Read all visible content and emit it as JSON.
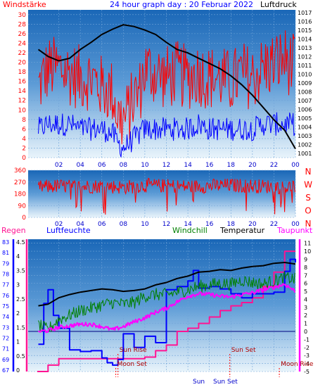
{
  "chart_data": [
    {
      "type": "line",
      "title": "24 hour graph day : 20 Februar 2022",
      "left_label": "Windstärke",
      "right_label": "Luftdruck",
      "x_ticks": [
        "02",
        "04",
        "06",
        "08",
        "10",
        "12",
        "14",
        "16",
        "18",
        "20",
        "22",
        "00"
      ],
      "y_left_ticks": [
        "0",
        "2",
        "4",
        "6",
        "8",
        "10",
        "12",
        "14",
        "16",
        "18",
        "20",
        "22",
        "24",
        "26",
        "28",
        "30"
      ],
      "y_left_range": [
        0,
        31
      ],
      "y_right_ticks": [
        "1001",
        "1002",
        "1003",
        "1004",
        "1005",
        "1006",
        "1007",
        "1008",
        "1009",
        "1010",
        "1011",
        "1012",
        "1013",
        "1014",
        "1015",
        "1016",
        "1017"
      ],
      "y_right_range": [
        1000.5,
        1017.3
      ],
      "colors": {
        "gust": "#ff0000",
        "wind": "#0000ff",
        "pressure": "#000000"
      },
      "series": [
        {
          "name": "",
          "key": "pressure",
          "axis": "right",
          "x": [
            0.1,
            1,
            2,
            3,
            4,
            5,
            6,
            7,
            8,
            9,
            10,
            11,
            12,
            13,
            14,
            15,
            16,
            17,
            18,
            19,
            20,
            21,
            22,
            23,
            24
          ],
          "values": [
            1012.8,
            1012.0,
            1011.5,
            1011.8,
            1012.8,
            1013.6,
            1014.5,
            1015.1,
            1015.6,
            1015.4,
            1015.0,
            1014.5,
            1013.6,
            1012.8,
            1012.4,
            1011.8,
            1011.2,
            1010.6,
            1009.8,
            1008.8,
            1007.6,
            1006.2,
            1004.8,
            1003.6,
            1001.5
          ]
        },
        {
          "name": "",
          "key": "gust",
          "axis": "left",
          "x": [
            0.1,
            1,
            2,
            3,
            4,
            5,
            6,
            7,
            7.5,
            8,
            8.5,
            9,
            9.5,
            10,
            11,
            12,
            13,
            14,
            15,
            16,
            17,
            18,
            19,
            20,
            21,
            22,
            23,
            24
          ],
          "values": [
            14,
            18,
            18,
            17,
            16,
            16,
            14,
            13,
            8,
            7,
            9,
            12,
            13,
            18,
            17,
            16,
            17,
            16,
            17,
            16,
            16,
            15,
            17,
            16,
            18,
            19,
            20,
            18
          ]
        },
        {
          "name": "",
          "key": "wind",
          "axis": "left",
          "x": [
            0.1,
            1,
            2,
            3,
            4,
            5,
            6,
            7,
            7.5,
            8,
            8.5,
            9,
            9.5,
            10,
            11,
            12,
            13,
            14,
            15,
            16,
            17,
            18,
            19,
            20,
            21,
            22,
            23,
            24
          ],
          "values": [
            6,
            7,
            7,
            7,
            6,
            6,
            6,
            5,
            3,
            2,
            3,
            4,
            5,
            6,
            6,
            6,
            6,
            6,
            7,
            6,
            6,
            6,
            6,
            6,
            7,
            7,
            7,
            7
          ]
        }
      ]
    },
    {
      "type": "line",
      "left_ticks": [
        "0",
        "90",
        "180",
        "270",
        "360"
      ],
      "y_range": [
        0,
        360
      ],
      "right_letters": [
        "N",
        "W",
        "S",
        "O",
        "N"
      ],
      "x_ticks": [
        "02",
        "04",
        "06",
        "08",
        "10",
        "12",
        "14",
        "16",
        "18",
        "20",
        "22",
        "00"
      ],
      "colors": {
        "direction": "#ff0000"
      },
      "series": [
        {
          "name": "",
          "key": "direction",
          "x": [
            0.1,
            2,
            4,
            6,
            8,
            10,
            12,
            14,
            16,
            18,
            20,
            22,
            24
          ],
          "values": [
            230,
            240,
            235,
            240,
            230,
            245,
            240,
            235,
            240,
            245,
            240,
            235,
            230
          ]
        }
      ]
    },
    {
      "type": "line",
      "header_labels": {
        "regen": "Regen",
        "luftfeuchte": "Luftfeuchte",
        "windchill": "Windchill",
        "temperatur": "Temperatur",
        "taupunkt": "Taupunkt"
      },
      "humidity_ticks": [
        "67",
        "69",
        "71",
        "72",
        "73",
        "74",
        "75",
        "76",
        "77",
        "78",
        "79",
        "81",
        "83"
      ],
      "rain_ticks": [
        "0",
        "0.5",
        "1",
        "1.5",
        "2",
        "2.5",
        "3",
        "3.5",
        "4",
        "4.5"
      ],
      "temp_ticks": [
        "-5",
        "-4",
        "-3",
        "-2",
        "-1",
        "0",
        "1",
        "2",
        "3",
        "4",
        "5",
        "6",
        "7",
        "8",
        "9",
        "10",
        "11"
      ],
      "x_ticks": [
        "02",
        "04",
        "06",
        "08",
        "10",
        "12",
        "14",
        "16",
        "18",
        "20",
        "22",
        "00"
      ],
      "temp_range": [
        -5,
        11.5
      ],
      "colors": {
        "rain": "#ff1493",
        "humidity": "#0000ff",
        "windchill": "#008000",
        "temperature": "#000000",
        "dewpoint": "#ff00ff",
        "zeroline": "#000080",
        "event": "#ff0000"
      },
      "events": [
        {
          "label": "Sun Rise",
          "hour": 7.5,
          "row": 1
        },
        {
          "label": "Moon Set",
          "hour": 7.3,
          "row": 2
        },
        {
          "label": "Sun Set",
          "hour": 17.9,
          "row": 1
        },
        {
          "label": "Moon Rise",
          "hour": 22.5,
          "row": 2
        }
      ],
      "bottom_labels": {
        "sun": "Sun",
        "sun_set": "Sun Set"
      },
      "series": [
        {
          "name": "",
          "key": "temperature",
          "x": [
            0.1,
            1,
            2,
            3,
            4,
            5,
            6,
            7,
            8,
            9,
            10,
            11,
            12,
            13,
            14,
            15,
            16,
            17,
            18,
            19,
            20,
            21,
            22,
            23,
            24
          ],
          "values": [
            3.2,
            3.4,
            4.2,
            4.6,
            4.9,
            5.1,
            5.3,
            5.2,
            5.0,
            5.1,
            5.3,
            5.8,
            6.1,
            6.6,
            6.9,
            7.4,
            7.5,
            7.7,
            7.6,
            7.9,
            8.1,
            8.2,
            8.5,
            8.6,
            8.4
          ]
        },
        {
          "name": "",
          "key": "windchill",
          "x": [
            0.1,
            1,
            2,
            3,
            4,
            5,
            6,
            7,
            8,
            9,
            10,
            11,
            12,
            13,
            14,
            15,
            16,
            17,
            18,
            19,
            20,
            21,
            22,
            23,
            24
          ],
          "values": [
            0.8,
            0.2,
            1.5,
            2.0,
            2.6,
            2.9,
            3.3,
            3.6,
            3.4,
            3.6,
            4.4,
            4.6,
            4.6,
            4.9,
            5.2,
            5.6,
            5.8,
            6.0,
            5.9,
            6.4,
            6.1,
            5.9,
            6.3,
            6.7,
            6.5
          ]
        },
        {
          "name": "",
          "key": "dewpoint",
          "x": [
            0.1,
            1,
            2,
            3,
            4,
            5,
            6,
            7,
            8,
            9,
            10,
            11,
            12,
            13,
            14,
            15,
            16,
            17,
            18,
            19,
            20,
            21,
            22,
            23,
            24
          ],
          "values": [
            0.0,
            0.1,
            0.5,
            0.7,
            0.9,
            0.9,
            0.6,
            0.2,
            0.6,
            1.2,
            1.7,
            2.4,
            2.9,
            3.7,
            4.4,
            4.7,
            4.6,
            4.4,
            4.3,
            4.6,
            4.8,
            5.2,
            5.5,
            5.9,
            5.0
          ]
        },
        {
          "name": "",
          "key": "humidity",
          "axis": "temp",
          "x": [
            0.1,
            0.6,
            1,
            1.5,
            2,
            3,
            4,
            5,
            6,
            6.5,
            7,
            7.5,
            8,
            9,
            10,
            11,
            12,
            13,
            14,
            14.5,
            15,
            16,
            17,
            18,
            19,
            20,
            21,
            22,
            23,
            23.5,
            24
          ],
          "values": [
            -1.6,
            3.5,
            5.2,
            2.0,
            0.4,
            -2.3,
            -2.5,
            -2.4,
            -3.3,
            -3.9,
            -4.2,
            -3.5,
            -0.3,
            -2.0,
            -0.6,
            -1.4,
            5.2,
            5.6,
            6.3,
            7.6,
            5.4,
            5.6,
            5.3,
            4.7,
            4.2,
            4.7,
            4.7,
            4.9,
            7.5,
            9.0,
            8.6
          ]
        },
        {
          "name": "",
          "key": "rain",
          "axis": "temp",
          "x": [
            0,
            0.7,
            1,
            2,
            3,
            4,
            5,
            6,
            7,
            8,
            9,
            10,
            11,
            12,
            13,
            14,
            15,
            16,
            17,
            18,
            19,
            20,
            21,
            22,
            23,
            24
          ],
          "values": [
            -5,
            -5,
            -4.2,
            -3.4,
            -3.4,
            -3.4,
            -3.4,
            -3.4,
            -3.4,
            -3.4,
            -3.4,
            -3.2,
            -2.4,
            -1.7,
            0,
            0.4,
            1.0,
            1.8,
            2.6,
            3.2,
            3.6,
            4.2,
            5.6,
            7.4,
            10.0,
            10.0
          ]
        }
      ]
    }
  ]
}
